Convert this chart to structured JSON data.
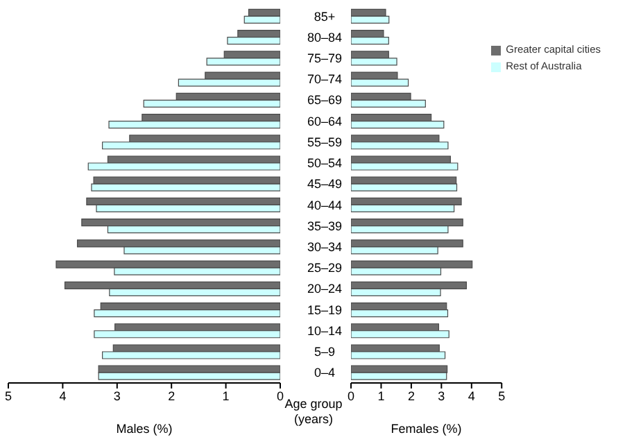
{
  "chart_data": [
    {
      "type": "bar",
      "orientation": "horizontal",
      "xlabel": "Males (%)",
      "ylabel": "Age group (years)",
      "categories": [
        "85+",
        "80–84",
        "75–79",
        "70–74",
        "65–69",
        "60–64",
        "55–59",
        "50–54",
        "45–49",
        "40–44",
        "35–39",
        "30–34",
        "25–29",
        "20–24",
        "15–19",
        "10–14",
        "5–9",
        "0–4"
      ],
      "series": [
        {
          "color": "#6d6d6d",
          "values": [
            0.58,
            0.78,
            1.03,
            1.38,
            1.91,
            2.54,
            2.77,
            3.17,
            3.43,
            3.56,
            3.65,
            3.73,
            4.12,
            3.96,
            3.3,
            3.04,
            3.07,
            3.34
          ]
        },
        {
          "color": "#ccffff",
          "values": [
            0.66,
            0.97,
            1.35,
            1.87,
            2.51,
            3.15,
            3.27,
            3.53,
            3.47,
            3.38,
            3.17,
            2.87,
            3.05,
            3.14,
            3.42,
            3.42,
            3.27,
            3.34
          ]
        }
      ],
      "xlim": [
        5,
        0
      ],
      "xticks": [
        5,
        4,
        3,
        2,
        1,
        0
      ],
      "grid": false,
      "legend": false
    },
    {
      "type": "bar",
      "orientation": "horizontal",
      "xlabel": "Females (%)",
      "categories": [
        null,
        null,
        null,
        null,
        null,
        null,
        null,
        null,
        null,
        null,
        null,
        null,
        null,
        null,
        null,
        null,
        null,
        null
      ],
      "series": [
        {
          "name": "Greater capital cities",
          "color": "#6d6d6d",
          "values": [
            1.15,
            1.08,
            1.25,
            1.54,
            1.98,
            2.66,
            2.92,
            3.3,
            3.49,
            3.66,
            3.71,
            3.71,
            4.02,
            3.83,
            3.17,
            2.91,
            2.93,
            3.19
          ]
        },
        {
          "name": "Rest of Australia",
          "color": "#ccffff",
          "values": [
            1.26,
            1.25,
            1.52,
            1.9,
            2.47,
            3.08,
            3.22,
            3.54,
            3.51,
            3.42,
            3.22,
            2.88,
            2.98,
            2.97,
            3.21,
            3.25,
            3.12,
            3.17
          ]
        }
      ],
      "xlim": [
        0,
        5
      ],
      "xticks": [
        0,
        1,
        2,
        3,
        4,
        5
      ],
      "tick_labels": "x",
      "grid": false,
      "legend": "top right"
    }
  ]
}
